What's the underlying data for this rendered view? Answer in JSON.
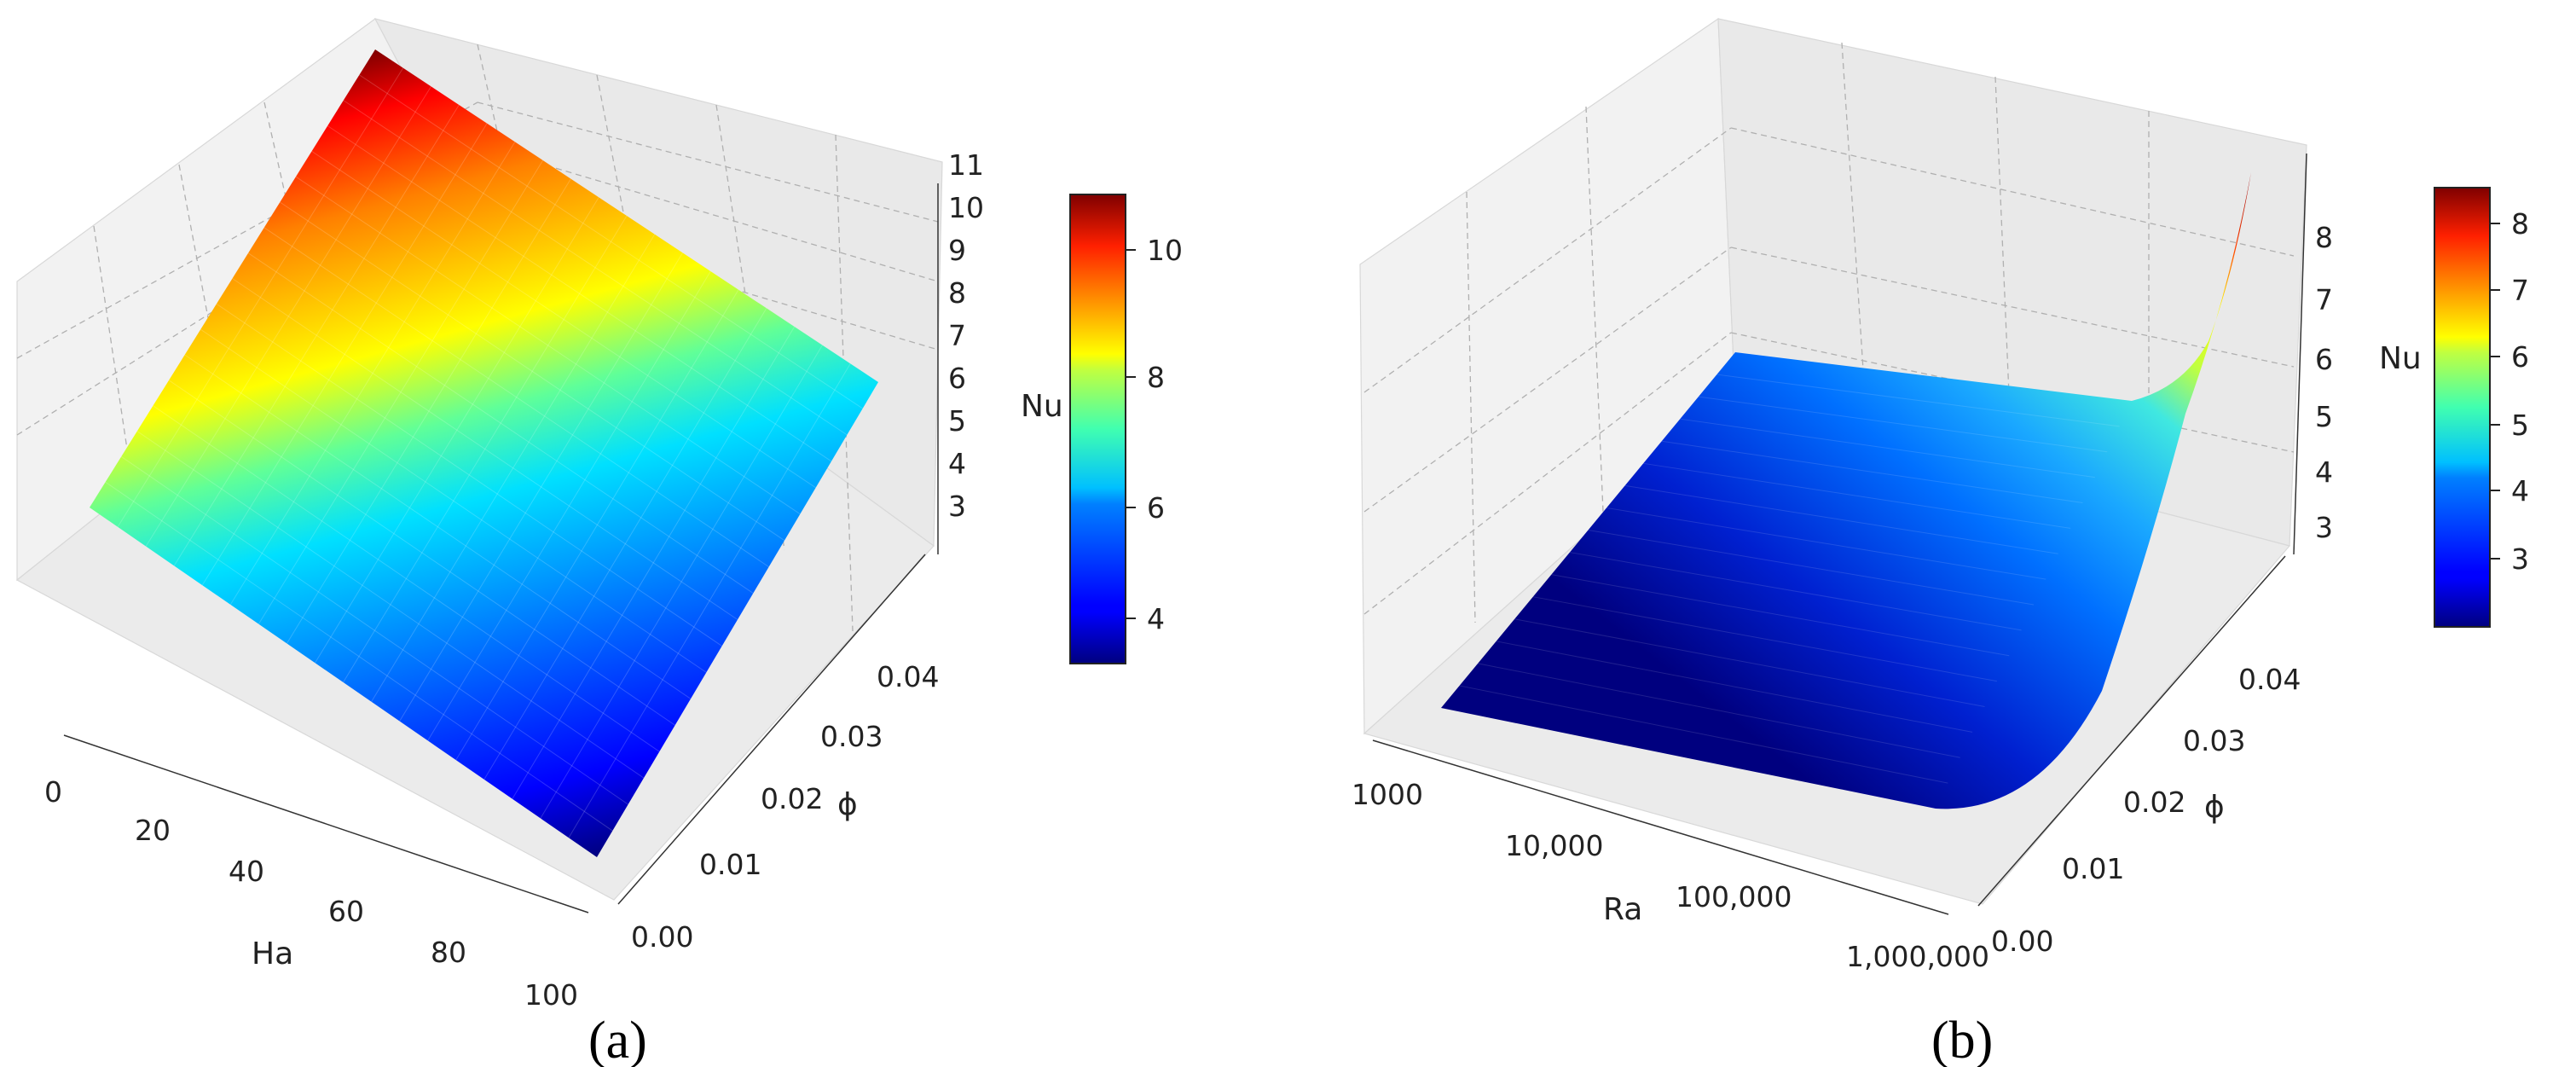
{
  "chart_data": [
    {
      "type": "surface",
      "panel_label": "(a)",
      "x": {
        "label": "Ha",
        "ticks": [
          "0",
          "20",
          "40",
          "60",
          "80",
          "100"
        ],
        "range": [
          0,
          100
        ],
        "scale": "linear"
      },
      "y": {
        "label": "ϕ",
        "ticks": [
          "0.00",
          "0.01",
          "0.02",
          "0.03",
          "0.04"
        ],
        "range": [
          0,
          0.05
        ]
      },
      "z": {
        "label": "Nu",
        "ticks": [
          "3",
          "4",
          "5",
          "6",
          "7",
          "8",
          "9",
          "10",
          "11"
        ],
        "range": [
          2.5,
          11
        ]
      },
      "surface_samples": [
        {
          "Ha": 0,
          "phi": 0.0,
          "Nu": 6.9
        },
        {
          "Ha": 0,
          "phi": 0.05,
          "Nu": 11.0
        },
        {
          "Ha": 100,
          "phi": 0.0,
          "Nu": 2.5
        },
        {
          "Ha": 100,
          "phi": 0.05,
          "Nu": 6.6
        }
      ],
      "colorbar": {
        "ticks": [
          "4",
          "6",
          "8",
          "10"
        ],
        "range": [
          2.5,
          10.8
        ],
        "colormap": "jet"
      }
    },
    {
      "type": "surface",
      "panel_label": "(b)",
      "x": {
        "label": "Ra",
        "ticks": [
          "1000",
          "10,000",
          "100,000",
          "1,000,000"
        ],
        "range": [
          1000,
          1000000
        ],
        "scale": "log"
      },
      "y": {
        "label": "ϕ",
        "ticks": [
          "0.00",
          "0.01",
          "0.02",
          "0.03",
          "0.04"
        ],
        "range": [
          0,
          0.05
        ]
      },
      "z": {
        "label": "Nu",
        "ticks": [
          "3",
          "4",
          "5",
          "6",
          "7",
          "8"
        ],
        "range": [
          2.1,
          8.8
        ]
      },
      "surface_samples": [
        {
          "Ra": 1000,
          "phi": 0.0,
          "Nu": 2.1
        },
        {
          "Ra": 1000,
          "phi": 0.05,
          "Nu": 4.3
        },
        {
          "Ra": 100000,
          "phi": 0.0,
          "Nu": 2.3
        },
        {
          "Ra": 1000000,
          "phi": 0.0,
          "Nu": 4.7
        },
        {
          "Ra": 1000000,
          "phi": 0.05,
          "Nu": 8.7
        }
      ],
      "colorbar": {
        "ticks": [
          "3",
          "4",
          "5",
          "6",
          "7",
          "8"
        ],
        "range": [
          2.2,
          8.7
        ],
        "colormap": "jet"
      }
    }
  ]
}
